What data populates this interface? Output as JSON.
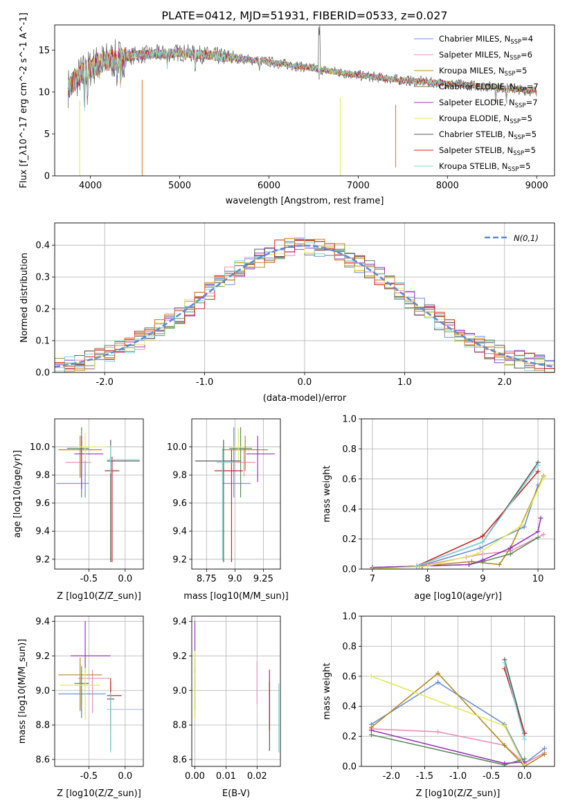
{
  "figure_title": "PLATE=0412, MJD=51931, FIBERID=0533, z=0.027",
  "colors": {
    "Chabrier MILES": "#6a8ed8",
    "Salpeter MILES": "#e890b4",
    "Kroupa MILES": "#b08a20",
    "Chabrier ELODIE": "#5a8a5a",
    "Salpeter ELODIE": "#9933bb",
    "Kroupa ELODIE": "#e4e85a",
    "Chabrier STELIB": "#555555",
    "Salpeter STELIB": "#cc2222",
    "Kroupa STELIB": "#7fd6d6",
    "orange": "#e07a2a",
    "gauss": "#5b8bd6"
  },
  "chart_data": [
    {
      "id": "spectrum",
      "type": "line",
      "xlabel": "wavelength [Angstrom, rest frame]",
      "ylabel": "Flux [f_λ10^-17 erg cm^-2 s^-1 A^-1]",
      "xlim": [
        3600,
        9200
      ],
      "ylim": [
        0,
        18
      ],
      "xticks": [
        4000,
        5000,
        6000,
        7000,
        8000,
        9000
      ],
      "yticks": [
        0,
        5,
        10,
        15
      ],
      "legend_position": "top-right",
      "legend": [
        {
          "text": "Chabrier MILES, N",
          "sub": "SSP",
          "tail": "=4"
        },
        {
          "text": "Salpeter MILES, N",
          "sub": "SSP",
          "tail": "=6"
        },
        {
          "text": "Kroupa MILES, N",
          "sub": "SSP",
          "tail": "=5"
        },
        {
          "text": "Chabrier ELODIE, N",
          "sub": "SSP",
          "tail": "=7"
        },
        {
          "text": "Salpeter ELODIE, N",
          "sub": "SSP",
          "tail": "=7"
        },
        {
          "text": "Kroupa ELODIE, N",
          "sub": "SSP",
          "tail": "=5"
        },
        {
          "text": "Chabrier STELIB, N",
          "sub": "SSP",
          "tail": "=5"
        },
        {
          "text": "Salpeter STELIB, N",
          "sub": "SSP",
          "tail": "=5"
        },
        {
          "text": "Kroupa STELIB, N",
          "sub": "SSP",
          "tail": "=5"
        }
      ],
      "continuum": [
        [
          3750,
          10.5
        ],
        [
          3900,
          12.2
        ],
        [
          4100,
          13.5
        ],
        [
          4500,
          14.4
        ],
        [
          5000,
          14.7
        ],
        [
          5500,
          14.2
        ],
        [
          6000,
          13.6
        ],
        [
          6500,
          12.8
        ],
        [
          7000,
          12.0
        ],
        [
          7500,
          11.4
        ],
        [
          8000,
          11.0
        ],
        [
          8500,
          10.6
        ],
        [
          9000,
          10.1
        ]
      ],
      "absorption_features": [
        [
          3934,
          4.5
        ],
        [
          3968,
          4.0
        ],
        [
          4102,
          1.5
        ],
        [
          4300,
          3.0
        ],
        [
          4340,
          3.0
        ],
        [
          4861,
          1.5
        ],
        [
          5175,
          2.0
        ],
        [
          5895,
          1.5
        ],
        [
          6563,
          1.0
        ],
        [
          8542,
          2.0
        ],
        [
          8662,
          2.0
        ]
      ],
      "artifact_drops": [
        [
          3880,
          0.0
        ],
        [
          4580,
          0.0
        ],
        [
          6800,
          0.0
        ],
        [
          7420,
          1.0
        ]
      ]
    },
    {
      "id": "residuals",
      "type": "histogram",
      "xlabel": "(data-model)/error",
      "ylabel": "Normed distribution",
      "xlim": [
        -2.5,
        2.5
      ],
      "ylim": [
        0,
        0.47
      ],
      "xticks": [
        -2,
        -1,
        0,
        1,
        2
      ],
      "yticks": [
        0.0,
        0.1,
        0.2,
        0.3,
        0.4
      ],
      "legend_label": "N(0,1)",
      "legend_position": "top-right",
      "bin_width": 0.1,
      "reference_curve": "standard normal"
    },
    {
      "id": "z_age",
      "type": "errorbar",
      "xlabel": "Z [log10(Z/Z_sun)]",
      "ylabel": "age [log10(age/yr)]",
      "xlim": [
        -0.97,
        0.25
      ],
      "ylim": [
        9.13,
        10.2
      ],
      "xticks": [
        -0.5,
        0.0
      ],
      "yticks": [
        9.2,
        9.4,
        9.6,
        9.8,
        10.0
      ],
      "points": [
        {
          "model": "Chabrier MILES",
          "x": -0.55,
          "xerr": [
            0.4,
            0.05
          ],
          "y": 9.74,
          "yerr": [
            0.1,
            0.2
          ]
        },
        {
          "model": "Salpeter MILES",
          "x": -0.62,
          "xerr": [
            0.2,
            0.15
          ],
          "y": 9.89,
          "yerr": [
            0.1,
            0.1
          ]
        },
        {
          "model": "Kroupa MILES",
          "x": -0.62,
          "xerr": [
            0.3,
            0.3
          ],
          "y": 9.98,
          "yerr": [
            0.2,
            0.1
          ]
        },
        {
          "model": "Chabrier ELODIE",
          "x": -0.6,
          "xerr": [
            0.2,
            0.1
          ],
          "y": 9.99,
          "yerr": [
            0.35,
            0.15
          ]
        },
        {
          "model": "Salpeter ELODIE",
          "x": -0.6,
          "xerr": [
            0.1,
            0.3
          ],
          "y": 9.95,
          "yerr": [
            0.25,
            0.13
          ]
        },
        {
          "model": "Kroupa ELODIE",
          "x": -0.55,
          "xerr": [
            0.1,
            0.3
          ],
          "y": 10.0,
          "yerr": [
            0.1,
            0.1
          ]
        },
        {
          "model": "Chabrier STELIB",
          "x": -0.2,
          "xerr": [
            0.05,
            0.4
          ],
          "y": 9.9,
          "yerr": [
            0.72,
            0.15
          ]
        },
        {
          "model": "Salpeter STELIB",
          "x": -0.18,
          "xerr": [
            0.1,
            0.1
          ],
          "y": 9.83,
          "yerr": [
            0.65,
            0.1
          ]
        },
        {
          "model": "Kroupa STELIB",
          "x": -0.2,
          "xerr": [
            0.05,
            0.4
          ],
          "y": 9.91,
          "yerr": [
            0.1,
            0.1
          ]
        }
      ]
    },
    {
      "id": "mass_age",
      "type": "errorbar",
      "xlabel": "mass [log10(M/M_sun)]",
      "ylabel": "",
      "xlim": [
        8.62,
        9.4
      ],
      "ylim": [
        9.13,
        10.2
      ],
      "xticks": [
        8.75,
        9.0,
        9.25
      ],
      "yticks": [
        9.2,
        9.4,
        9.6,
        9.8,
        10.0
      ],
      "points": [
        {
          "model": "Chabrier MILES",
          "x": 8.99,
          "xerr": [
            0.1,
            0.15
          ],
          "y": 9.74,
          "yerr": [
            0.1,
            0.4
          ]
        },
        {
          "model": "Salpeter MILES",
          "x": 9.08,
          "xerr": [
            0.1,
            0.1
          ],
          "y": 9.89,
          "yerr": [
            0.1,
            0.1
          ]
        },
        {
          "model": "Kroupa MILES",
          "x": 9.09,
          "xerr": [
            0.2,
            0.2
          ],
          "y": 9.98,
          "yerr": [
            0.15,
            0.1
          ]
        },
        {
          "model": "Chabrier ELODIE",
          "x": 9.05,
          "xerr": [
            0.1,
            0.1
          ],
          "y": 9.99,
          "yerr": [
            0.35,
            0.15
          ]
        },
        {
          "model": "Salpeter ELODIE",
          "x": 9.2,
          "xerr": [
            0.1,
            0.15
          ],
          "y": 9.95,
          "yerr": [
            0.2,
            0.13
          ]
        },
        {
          "model": "Kroupa ELODIE",
          "x": 9.03,
          "xerr": [
            0.05,
            0.05
          ],
          "y": 10.0,
          "yerr": [
            0.1,
            0.13
          ]
        },
        {
          "model": "Chabrier STELIB",
          "x": 8.9,
          "xerr": [
            0.25,
            0.15
          ],
          "y": 9.9,
          "yerr": [
            0.72,
            0.15
          ]
        },
        {
          "model": "Salpeter STELIB",
          "x": 8.97,
          "xerr": [
            0.15,
            0.1
          ],
          "y": 9.83,
          "yerr": [
            0.65,
            0.15
          ]
        },
        {
          "model": "Kroupa STELIB",
          "x": 8.89,
          "xerr": [
            0.05,
            0.1
          ],
          "y": 9.89,
          "yerr": [
            0.7,
            0.1
          ]
        }
      ]
    },
    {
      "id": "age_weight",
      "type": "line",
      "xlabel": "age [log10(age/yr)]",
      "ylabel": "mass weight",
      "xlim": [
        6.8,
        10.3
      ],
      "ylim": [
        0,
        1
      ],
      "xticks": [
        7,
        8,
        9,
        10
      ],
      "yticks": [
        0.0,
        0.2,
        0.4,
        0.6,
        0.8,
        1.0
      ],
      "series": [
        {
          "model": "Chabrier MILES",
          "x": [
            7.0,
            7.85,
            8.95,
            9.75,
            10.0
          ],
          "y": [
            0.01,
            0.02,
            0.14,
            0.28,
            0.56
          ]
        },
        {
          "model": "Salpeter MILES",
          "x": [
            7.0,
            7.85,
            8.7,
            9.0,
            9.5,
            10.1
          ],
          "y": [
            0.01,
            0.02,
            0.08,
            0.1,
            0.12,
            0.23
          ]
        },
        {
          "model": "Kroupa MILES",
          "x": [
            7.0,
            7.9,
            8.8,
            9.3,
            9.5,
            10.1
          ],
          "y": [
            0.01,
            0.02,
            0.05,
            0.03,
            0.14,
            0.62
          ]
        },
        {
          "model": "Chabrier ELODIE",
          "x": [
            7.0,
            7.9,
            8.75,
            9.0,
            9.5,
            10.0
          ],
          "y": [
            0.01,
            0.02,
            0.03,
            0.05,
            0.1,
            0.21
          ]
        },
        {
          "model": "Salpeter ELODIE",
          "x": [
            7.0,
            7.9,
            8.75,
            9.0,
            9.5,
            10.0,
            10.05
          ],
          "y": [
            0.01,
            0.02,
            0.03,
            0.06,
            0.14,
            0.25,
            0.34
          ]
        },
        {
          "model": "Kroupa ELODIE",
          "x": [
            7.0,
            8.0,
            8.9,
            9.7,
            10.1
          ],
          "y": [
            0.0,
            0.02,
            0.1,
            0.29,
            0.61
          ]
        },
        {
          "model": "Chabrier STELIB",
          "x": [
            7.8,
            9.0,
            10.0
          ],
          "y": [
            0.02,
            0.18,
            0.71
          ]
        },
        {
          "model": "Salpeter STELIB",
          "x": [
            7.8,
            9.0,
            10.0
          ],
          "y": [
            0.02,
            0.22,
            0.65
          ]
        },
        {
          "model": "Kroupa STELIB",
          "x": [
            7.8,
            9.0,
            10.0
          ],
          "y": [
            0.02,
            0.18,
            0.69
          ]
        }
      ]
    },
    {
      "id": "z_mass",
      "type": "errorbar",
      "xlabel": "Z [log10(Z/Z_sun)]",
      "ylabel": "mass [log10(M/M_sun)]",
      "xlim": [
        -0.97,
        0.25
      ],
      "ylim": [
        8.56,
        9.43
      ],
      "xticks": [
        -0.5,
        0.0
      ],
      "yticks": [
        8.6,
        8.8,
        9.0,
        9.2,
        9.4
      ],
      "points": [
        {
          "model": "Chabrier MILES",
          "x": -0.62,
          "xerr": [
            0.3,
            0.35
          ],
          "y": 8.98,
          "yerr": [
            0.1,
            0.1
          ]
        },
        {
          "model": "Salpeter MILES",
          "x": -0.45,
          "xerr": [
            0.2,
            0.25
          ],
          "y": 9.07,
          "yerr": [
            0.2,
            0.05
          ]
        },
        {
          "model": "Kroupa MILES",
          "x": -0.62,
          "xerr": [
            0.3,
            0.3
          ],
          "y": 9.09,
          "yerr": [
            0.2,
            0.1
          ]
        },
        {
          "model": "Chabrier ELODIE",
          "x": -0.6,
          "xerr": [
            0.1,
            0.1
          ],
          "y": 9.04,
          "yerr": [
            0.2,
            0.1
          ]
        },
        {
          "model": "Salpeter ELODIE",
          "x": -0.55,
          "xerr": [
            0.2,
            0.35
          ],
          "y": 9.2,
          "yerr": [
            0.1,
            0.2
          ]
        },
        {
          "model": "Kroupa ELODIE",
          "x": -0.55,
          "xerr": [
            0.35,
            0.2
          ],
          "y": 9.03,
          "yerr": [
            0.2,
            0.1
          ]
        },
        {
          "model": "Chabrier STELIB",
          "x": -0.2,
          "xerr": [
            0.05,
            0.05
          ],
          "y": 8.95,
          "yerr": [
            0.3,
            0.1
          ]
        },
        {
          "model": "Salpeter STELIB",
          "x": -0.2,
          "xerr": [
            0.05,
            0.15
          ],
          "y": 8.97,
          "yerr": [
            0.2,
            0.1
          ]
        },
        {
          "model": "Kroupa STELIB",
          "x": -0.2,
          "xerr": [
            0.05,
            0.45
          ],
          "y": 8.89,
          "yerr": [
            0.25,
            0.1
          ]
        }
      ]
    },
    {
      "id": "ebv_mass",
      "type": "errorbar",
      "xlabel": "E(B-V)",
      "ylabel": "",
      "xlim": [
        -0.001,
        0.0275
      ],
      "ylim": [
        8.56,
        9.43
      ],
      "xticks": [
        0.0,
        0.01,
        0.02
      ],
      "xticklabels": [
        "0.00",
        "0.01",
        "0.02"
      ],
      "yticks": [
        8.6,
        8.8,
        9.0,
        9.2,
        9.4
      ],
      "points": [
        {
          "model": "Chabrier MILES",
          "x": 0.0,
          "y": 8.98,
          "yerr": [
            0.1,
            0.1
          ]
        },
        {
          "model": "Salpeter MILES",
          "x": 0.02,
          "y": 9.07,
          "yerr": [
            0.15,
            0.1
          ]
        },
        {
          "model": "Kroupa MILES",
          "x": 0.0,
          "y": 9.09,
          "yerr": [
            0.2,
            0.1
          ]
        },
        {
          "model": "Chabrier ELODIE",
          "x": 0.0,
          "y": 9.04,
          "yerr": [
            0.2,
            0.1
          ]
        },
        {
          "model": "Salpeter ELODIE",
          "x": 0.0,
          "y": 9.2,
          "yerr": [
            0.1,
            0.2
          ]
        },
        {
          "model": "Kroupa ELODIE",
          "x": 0.0,
          "y": 9.03,
          "yerr": [
            0.2,
            0.2
          ]
        },
        {
          "model": "Chabrier STELIB",
          "x": 0.024,
          "y": 8.95,
          "yerr": [
            0.3,
            0.1
          ]
        },
        {
          "model": "Salpeter STELIB",
          "x": 0.024,
          "y": 8.97,
          "yerr": [
            0.2,
            0.15
          ]
        },
        {
          "model": "Kroupa STELIB",
          "x": 0.027,
          "y": 8.89,
          "yerr": [
            0.25,
            0.15
          ]
        }
      ]
    },
    {
      "id": "z_weight",
      "type": "line",
      "xlabel": "Z [log10(Z/Z_sun)]",
      "ylabel": "mass weight",
      "xlim": [
        -2.45,
        0.45
      ],
      "ylim": [
        0,
        1
      ],
      "xticks": [
        -2.0,
        -1.5,
        -1.0,
        -0.5,
        0.0
      ],
      "yticks": [
        0.0,
        0.2,
        0.4,
        0.6,
        0.8,
        1.0
      ],
      "series": [
        {
          "model": "Chabrier MILES",
          "x": [
            -2.3,
            -1.3,
            -0.3,
            0.0,
            0.3
          ],
          "y": [
            0.28,
            0.56,
            0.28,
            0.02,
            0.12
          ]
        },
        {
          "model": "Salpeter MILES",
          "x": [
            -2.3,
            -1.3,
            -0.3,
            0.0,
            0.3
          ],
          "y": [
            0.25,
            0.23,
            0.14,
            0.02,
            0.09
          ]
        },
        {
          "model": "Kroupa MILES",
          "x": [
            -2.3,
            -1.3,
            -0.3,
            0.0,
            0.3
          ],
          "y": [
            0.26,
            0.62,
            0.14,
            0.0,
            0.08
          ]
        },
        {
          "model": "Chabrier ELODIE",
          "x": [
            -2.3,
            -0.3,
            0.0
          ],
          "y": [
            0.21,
            0.01,
            0.05
          ]
        },
        {
          "model": "Salpeter ELODIE",
          "x": [
            -2.3,
            -0.3,
            0.0
          ],
          "y": [
            0.24,
            0.02,
            0.03
          ]
        },
        {
          "model": "Kroupa ELODIE",
          "x": [
            -2.3,
            -0.3,
            0.0
          ],
          "y": [
            0.6,
            0.27,
            0.0
          ]
        },
        {
          "model": "Chabrier STELIB",
          "x": [
            -0.3,
            0.0
          ],
          "y": [
            0.71,
            0.22
          ]
        },
        {
          "model": "Salpeter STELIB",
          "x": [
            -0.3,
            0.0
          ],
          "y": [
            0.65,
            0.22
          ]
        },
        {
          "model": "Kroupa STELIB",
          "x": [
            -0.3,
            0.0
          ],
          "y": [
            0.69,
            0.18
          ]
        }
      ]
    }
  ]
}
